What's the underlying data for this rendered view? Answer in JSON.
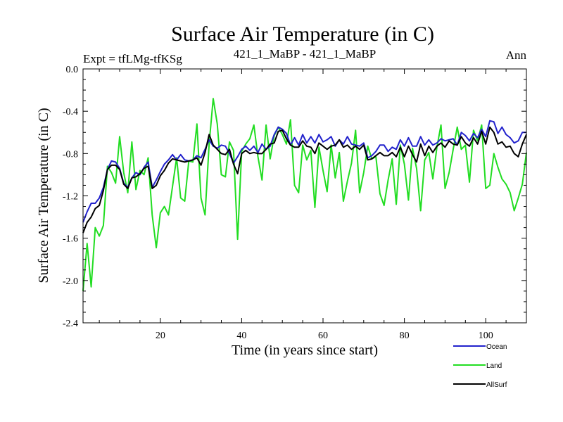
{
  "chart_data": {
    "type": "line",
    "title": "Surface Air Temperature (in C)",
    "left_label": "Expt = tfLMg-tfKSg",
    "center_label": "421_1_MaBP - 421_1_MaBP",
    "right_label": "Ann",
    "xlabel": "Time (in years since start)",
    "ylabel": "Surface Air Temperature (in C)",
    "xlim": [
      1,
      110
    ],
    "ylim": [
      -2.4,
      0.0
    ],
    "x_ticks": [
      20,
      40,
      60,
      80,
      100
    ],
    "x_tick_labels": [
      "20",
      "40",
      "60",
      "80",
      "100"
    ],
    "y_ticks": [
      0.0,
      -0.4,
      -0.8,
      -1.2,
      -1.6,
      -2.0,
      -2.4
    ],
    "y_tick_labels": [
      "0.0",
      "-0.4",
      "-0.8",
      "-1.2",
      "-1.6",
      "-2.0",
      "-2.4"
    ],
    "x_start": 1,
    "series": [
      {
        "name": "Ocean",
        "color": "#2222cc",
        "values": [
          -1.45,
          -1.35,
          -1.27,
          -1.27,
          -1.22,
          -1.12,
          -0.95,
          -0.87,
          -0.88,
          -0.94,
          -1.08,
          -1.12,
          -1.03,
          -0.98,
          -1.0,
          -0.93,
          -0.88,
          -1.12,
          -1.05,
          -0.97,
          -0.9,
          -0.86,
          -0.81,
          -0.86,
          -0.81,
          -0.86,
          -0.87,
          -0.86,
          -0.82,
          -0.84,
          -0.76,
          -0.67,
          -0.73,
          -0.75,
          -0.72,
          -0.73,
          -0.8,
          -0.89,
          -0.83,
          -0.76,
          -0.73,
          -0.77,
          -0.73,
          -0.79,
          -0.71,
          -0.76,
          -0.73,
          -0.62,
          -0.55,
          -0.57,
          -0.61,
          -0.72,
          -0.65,
          -0.72,
          -0.62,
          -0.7,
          -0.64,
          -0.7,
          -0.62,
          -0.69,
          -0.67,
          -0.64,
          -0.73,
          -0.67,
          -0.71,
          -0.64,
          -0.71,
          -0.72,
          -0.73,
          -0.7,
          -0.84,
          -0.82,
          -0.78,
          -0.72,
          -0.72,
          -0.78,
          -0.74,
          -0.76,
          -0.67,
          -0.73,
          -0.65,
          -0.73,
          -0.73,
          -0.64,
          -0.72,
          -0.67,
          -0.72,
          -0.7,
          -0.66,
          -0.68,
          -0.67,
          -0.66,
          -0.72,
          -0.6,
          -0.63,
          -0.68,
          -0.61,
          -0.65,
          -0.57,
          -0.64,
          -0.49,
          -0.5,
          -0.61,
          -0.55,
          -0.62,
          -0.65,
          -0.7,
          -0.68,
          -0.6,
          -0.6
        ]
      },
      {
        "name": "Land",
        "color": "#22dd22",
        "values": [
          -2.1,
          -1.65,
          -2.06,
          -1.5,
          -1.58,
          -1.48,
          -0.92,
          -0.98,
          -1.08,
          -0.64,
          -0.98,
          -1.17,
          -0.69,
          -1.14,
          -0.96,
          -1.0,
          -0.84,
          -1.38,
          -1.69,
          -1.36,
          -1.3,
          -1.38,
          -1.11,
          -0.84,
          -1.22,
          -1.25,
          -0.87,
          -0.88,
          -0.52,
          -1.22,
          -1.38,
          -0.71,
          -0.28,
          -0.52,
          -1.0,
          -1.02,
          -0.69,
          -0.77,
          -1.61,
          -0.78,
          -0.71,
          -0.66,
          -0.53,
          -0.83,
          -1.05,
          -0.53,
          -0.85,
          -0.63,
          -0.55,
          -0.62,
          -0.71,
          -0.48,
          -1.1,
          -1.17,
          -0.72,
          -0.86,
          -0.77,
          -1.31,
          -0.74,
          -0.96,
          -1.16,
          -0.72,
          -1.03,
          -0.79,
          -1.25,
          -1.06,
          -0.89,
          -0.58,
          -1.17,
          -0.98,
          -0.73,
          -0.85,
          -0.83,
          -1.18,
          -1.29,
          -1.05,
          -0.85,
          -1.28,
          -0.72,
          -0.9,
          -1.24,
          -0.75,
          -0.94,
          -1.34,
          -0.86,
          -0.79,
          -1.04,
          -0.74,
          -0.53,
          -1.13,
          -0.98,
          -0.76,
          -0.55,
          -0.76,
          -0.72,
          -1.07,
          -0.58,
          -0.68,
          -0.53,
          -1.13,
          -1.1,
          -0.8,
          -0.93,
          -1.04,
          -1.09,
          -1.17,
          -1.34,
          -1.22,
          -1.09,
          -0.79
        ]
      },
      {
        "name": "AllSurf",
        "color": "#000000",
        "values": [
          -1.55,
          -1.45,
          -1.4,
          -1.32,
          -1.29,
          -1.15,
          -0.95,
          -0.91,
          -0.91,
          -0.95,
          -1.09,
          -1.13,
          -1.03,
          -1.02,
          -0.99,
          -0.94,
          -0.92,
          -1.13,
          -1.1,
          -1.01,
          -0.96,
          -0.89,
          -0.85,
          -0.86,
          -0.87,
          -0.88,
          -0.87,
          -0.86,
          -0.84,
          -0.91,
          -0.79,
          -0.62,
          -0.72,
          -0.76,
          -0.8,
          -0.81,
          -0.76,
          -0.9,
          -0.99,
          -0.8,
          -0.77,
          -0.8,
          -0.79,
          -0.8,
          -0.8,
          -0.76,
          -0.71,
          -0.7,
          -0.59,
          -0.58,
          -0.66,
          -0.72,
          -0.74,
          -0.74,
          -0.68,
          -0.73,
          -0.74,
          -0.8,
          -0.7,
          -0.73,
          -0.76,
          -0.73,
          -0.72,
          -0.67,
          -0.74,
          -0.72,
          -0.76,
          -0.73,
          -0.76,
          -0.72,
          -0.86,
          -0.85,
          -0.82,
          -0.79,
          -0.82,
          -0.82,
          -0.79,
          -0.83,
          -0.74,
          -0.83,
          -0.73,
          -0.81,
          -0.88,
          -0.71,
          -0.82,
          -0.73,
          -0.79,
          -0.73,
          -0.7,
          -0.74,
          -0.68,
          -0.71,
          -0.72,
          -0.64,
          -0.7,
          -0.73,
          -0.65,
          -0.71,
          -0.59,
          -0.71,
          -0.55,
          -0.6,
          -0.71,
          -0.69,
          -0.74,
          -0.73,
          -0.8,
          -0.83,
          -0.71,
          -0.62
        ]
      }
    ],
    "legend": {
      "placement": "bottom-right",
      "entries": [
        "Ocean",
        "Land",
        "AllSurf"
      ]
    }
  }
}
